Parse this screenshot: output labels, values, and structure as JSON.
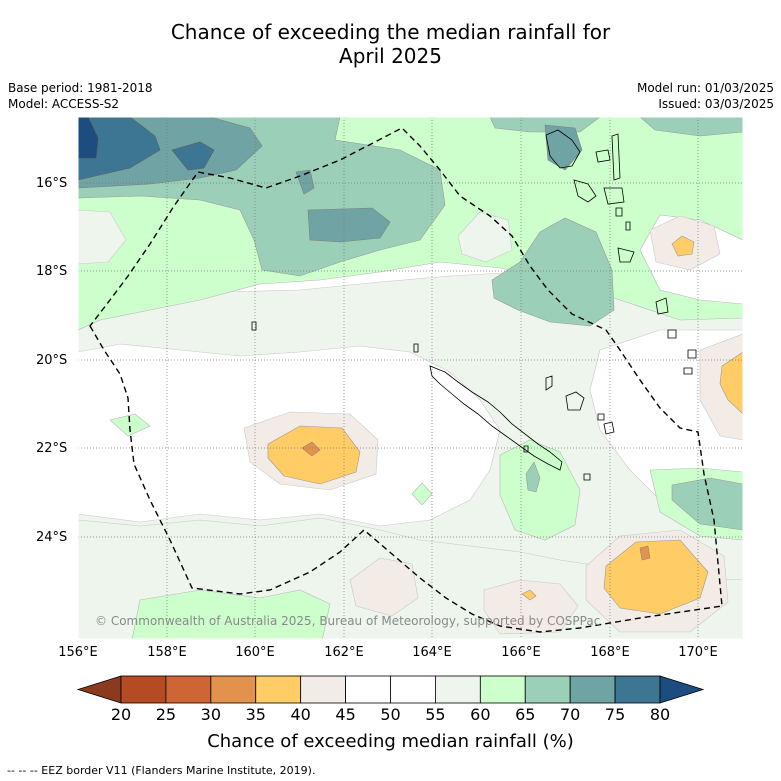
{
  "title_line1": "Chance of exceeding the median rainfall for",
  "title_line2": "April 2025",
  "base_period": "Base period: 1981-2018",
  "model": "Model: ACCESS-S2",
  "model_run": "Model run: 01/03/2025",
  "issued": "Issued: 03/03/2025",
  "copyright": "© Commonwealth of Australia 2025, Bureau of Meteorology, supported by COSPPac",
  "lat_labels": [
    "16°S",
    "18°S",
    "20°S",
    "22°S",
    "24°S"
  ],
  "lon_labels": [
    "156°E",
    "158°E",
    "160°E",
    "162°E",
    "164°E",
    "166°E",
    "168°E",
    "170°E"
  ],
  "colorbar": {
    "title": "Chance of exceeding median rainfall (%)",
    "ticks": [
      "20",
      "25",
      "30",
      "35",
      "40",
      "45",
      "50",
      "55",
      "60",
      "65",
      "70",
      "75",
      "80"
    ],
    "colors": [
      "#8b3a1f",
      "#b54b23",
      "#cd6634",
      "#e2924a",
      "#ffcc66",
      "#f2ebe6",
      "#ffffff",
      "#ffffff",
      "#edf5ec",
      "#ccffcc",
      "#9ccfb8",
      "#6fa3a4",
      "#3d7693",
      "#1d4d80"
    ]
  },
  "footer": "-- -- -- EEZ border V11 (Flanders Marine Institute, 2019)."
}
